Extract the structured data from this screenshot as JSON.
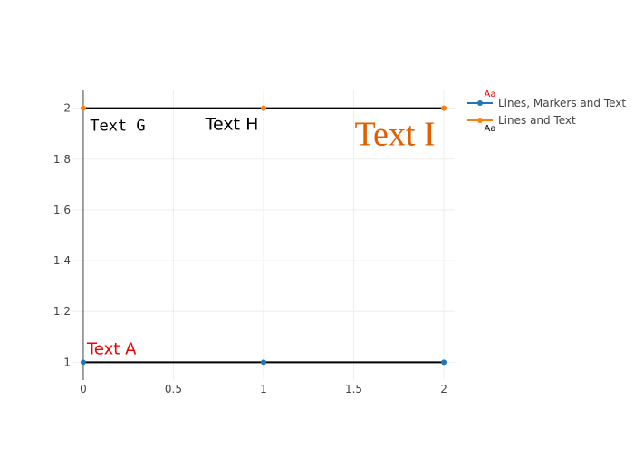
{
  "chart_data": {
    "type": "line",
    "title": "",
    "xlabel": "",
    "ylabel": "",
    "xlim": [
      -0.06,
      2.06
    ],
    "ylim": [
      0.93,
      2.07
    ],
    "x_ticks": [
      0,
      0.5,
      1,
      1.5,
      2
    ],
    "x_tick_labels": [
      "0",
      "0.5",
      "1",
      "1.5",
      "2"
    ],
    "y_ticks": [
      1,
      1.2,
      1.4,
      1.6,
      1.8,
      2
    ],
    "y_tick_labels": [
      "1",
      "1.2",
      "1.4",
      "1.6",
      "1.8",
      "2"
    ],
    "grid": true,
    "legend_position": "top-right",
    "series": [
      {
        "name": "Lines, Markers and Text",
        "x": [
          0,
          1,
          2
        ],
        "y": [
          1,
          1,
          1
        ],
        "line_color": "#000000",
        "marker_color": "#1f77b4",
        "text": [
          "Text A",
          "",
          ""
        ],
        "text_colors": [
          "#ee0000",
          "#ee0000",
          "#ee0000"
        ],
        "text_position": "top right",
        "legend_sample_text": "Aa",
        "legend_sample_color": "#ee0000",
        "legend_sample_position": "top"
      },
      {
        "name": "Lines and Text",
        "x": [
          0,
          1,
          2
        ],
        "y": [
          2,
          2,
          2
        ],
        "line_color": "#000000",
        "marker_color": "#ff7f0e",
        "text": [
          "Text G",
          "Text H",
          "Text I"
        ],
        "text_colors": [
          "#000000",
          "#000000",
          "#e06000"
        ],
        "text_position": "bottom",
        "legend_sample_text": "Aa",
        "legend_sample_color": "#000000",
        "legend_sample_position": "bottom"
      }
    ]
  }
}
